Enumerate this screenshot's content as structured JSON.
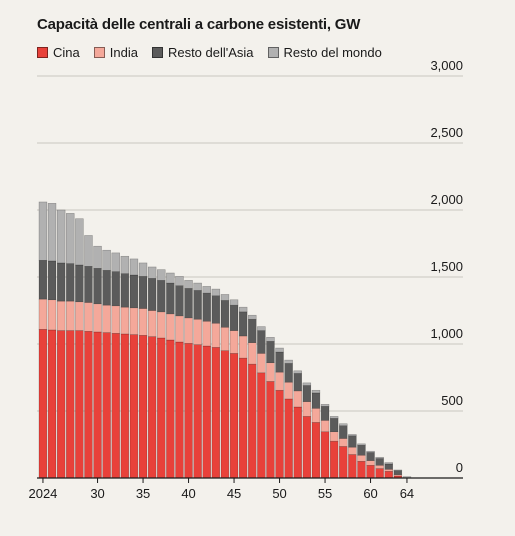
{
  "chart_data": {
    "type": "bar",
    "stacked": true,
    "title": "Capacità delle centrali a carbone esistenti, GW",
    "xlabel": "",
    "ylabel": "",
    "ylim": [
      0,
      3000
    ],
    "grid": true,
    "legend_position": "top-left",
    "y_ticks": [
      "3,000",
      "2,500",
      "2,000",
      "1,500",
      "1,000",
      "500",
      "0"
    ],
    "y_tick_values": [
      3000,
      2500,
      2000,
      1500,
      1000,
      500,
      0
    ],
    "x_tick_labels": [
      "2024",
      "30",
      "35",
      "40",
      "45",
      "50",
      "55",
      "60",
      "64"
    ],
    "x_tick_years": [
      2024,
      2030,
      2035,
      2040,
      2045,
      2050,
      2055,
      2060,
      2064
    ],
    "x": [
      2024,
      2025,
      2026,
      2027,
      2028,
      2029,
      2030,
      2031,
      2032,
      2033,
      2034,
      2035,
      2036,
      2037,
      2038,
      2039,
      2040,
      2041,
      2042,
      2043,
      2044,
      2045,
      2046,
      2047,
      2048,
      2049,
      2050,
      2051,
      2052,
      2053,
      2054,
      2055,
      2056,
      2057,
      2058,
      2059,
      2060,
      2061,
      2062,
      2063,
      2064
    ],
    "series": [
      {
        "name": "Cina",
        "color": "#e8413a",
        "values": [
          1110,
          1105,
          1100,
          1100,
          1100,
          1095,
          1090,
          1085,
          1080,
          1075,
          1070,
          1065,
          1055,
          1045,
          1030,
          1015,
          1005,
          995,
          985,
          975,
          950,
          930,
          895,
          850,
          785,
          720,
          655,
          590,
          530,
          460,
          415,
          345,
          275,
          235,
          175,
          125,
          95,
          70,
          50,
          15,
          0
        ]
      },
      {
        "name": "India",
        "color": "#f4a89a",
        "values": [
          225,
          225,
          220,
          220,
          215,
          215,
          210,
          205,
          205,
          200,
          200,
          200,
          195,
          195,
          195,
          195,
          190,
          190,
          185,
          180,
          175,
          170,
          165,
          160,
          145,
          140,
          135,
          125,
          120,
          110,
          105,
          85,
          70,
          60,
          55,
          45,
          35,
          25,
          15,
          10,
          0
        ]
      },
      {
        "name": "Resto dell'Asia",
        "color": "#5b5b5b",
        "values": [
          290,
          290,
          285,
          280,
          275,
          270,
          265,
          260,
          255,
          250,
          245,
          240,
          240,
          235,
          230,
          225,
          220,
          215,
          210,
          205,
          200,
          190,
          180,
          175,
          170,
          160,
          150,
          140,
          130,
          120,
          115,
          105,
          100,
          95,
          85,
          75,
          60,
          50,
          40,
          30,
          0
        ]
      },
      {
        "name": "Resto del mondo",
        "color": "#b1b1b1",
        "values": [
          435,
          430,
          395,
          375,
          345,
          230,
          165,
          150,
          140,
          130,
          120,
          100,
          85,
          80,
          75,
          70,
          60,
          55,
          50,
          50,
          45,
          40,
          35,
          30,
          30,
          30,
          30,
          25,
          20,
          20,
          20,
          15,
          15,
          15,
          10,
          10,
          10,
          10,
          10,
          5,
          10
        ]
      }
    ]
  }
}
